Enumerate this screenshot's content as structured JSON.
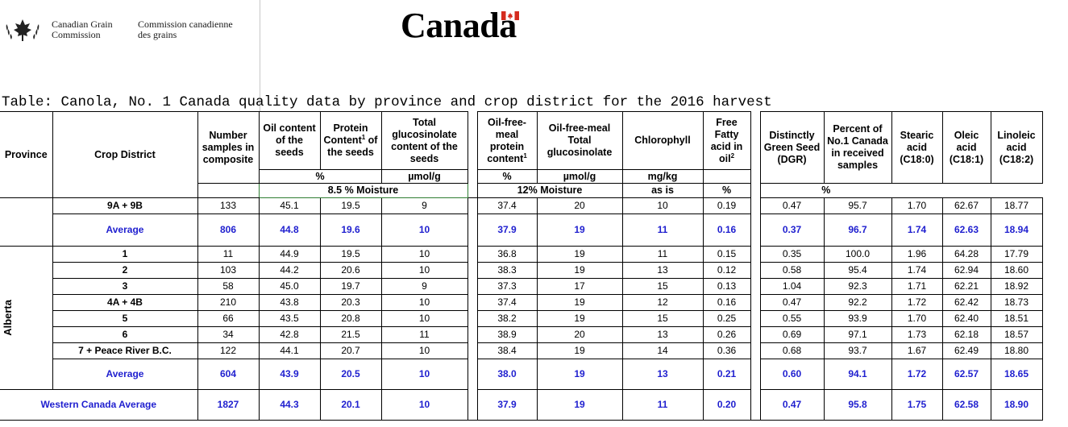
{
  "header": {
    "cgc_en_line1": "Canadian Grain",
    "cgc_en_line2": "Commission",
    "cgc_fr_line1": "Commission canadienne",
    "cgc_fr_line2": "des grains",
    "wordmark": "Canada",
    "title": "Table: Canola, No. 1 Canada quality data by province and crop district for the 2016 harvest"
  },
  "columns": {
    "province": "Province",
    "district": "Crop District",
    "samples": "Number samples in composite",
    "oil_a": "Oil content of the seeds",
    "protein_a": "Protein",
    "protein_b": "Content",
    "protein_sup": "1",
    "protein_c": " of the seeds",
    "gluc": "Total glucosinolate content of the seeds",
    "ofm_protein_a": "Oil-free-meal protein content",
    "ofm_protein_sup": "1",
    "ofm_gluc": "Oil-free-meal Total glucosinolate",
    "chlorophyll": "Chlorophyll",
    "ffa_a": "Free Fatty acid in oil",
    "ffa_sup": "2",
    "dgr": "Distinctly Green Seed (DGR)",
    "pct_no1": "Percent of No.1 Canada in received samples",
    "stearic": "Stearic acid (C18:0)",
    "oleic": "Oleic acid (C18:1)",
    "linoleic": "Linoleic acid (C18:2)"
  },
  "units": {
    "pct": "%",
    "umol": "µmol/g",
    "pct2": "%",
    "umol2": "µmol/g",
    "mgkg": "mg/kg",
    "moist85": "8.5 % Moisture",
    "moist12": "12% Moisture",
    "asis": "as is",
    "pct3": "%",
    "pct4": "%"
  },
  "group1": {
    "rows": [
      {
        "district": "9A + 9B",
        "samples": "133",
        "oil": "45.1",
        "protein": "19.5",
        "gluc": "9",
        "ofm_protein": "37.4",
        "ofm_gluc": "20",
        "chl": "10",
        "ffa": "0.19",
        "dgr": "0.47",
        "pct": "95.7",
        "stearic": "1.70",
        "oleic": "62.67",
        "linoleic": "18.77"
      }
    ],
    "average": {
      "label": "Average",
      "samples": "806",
      "oil": "44.8",
      "protein": "19.6",
      "gluc": "10",
      "ofm_protein": "37.9",
      "ofm_gluc": "19",
      "chl": "11",
      "ffa": "0.16",
      "dgr": "0.37",
      "pct": "96.7",
      "stearic": "1.74",
      "oleic": "62.63",
      "linoleic": "18.94"
    }
  },
  "alberta": {
    "province": "Alberta",
    "rows": [
      {
        "district": "1",
        "samples": "11",
        "oil": "44.9",
        "protein": "19.5",
        "gluc": "10",
        "ofm_protein": "36.8",
        "ofm_gluc": "19",
        "chl": "11",
        "ffa": "0.15",
        "dgr": "0.35",
        "pct": "100.0",
        "stearic": "1.96",
        "oleic": "64.28",
        "linoleic": "17.79"
      },
      {
        "district": "2",
        "samples": "103",
        "oil": "44.2",
        "protein": "20.6",
        "gluc": "10",
        "ofm_protein": "38.3",
        "ofm_gluc": "19",
        "chl": "13",
        "ffa": "0.12",
        "dgr": "0.58",
        "pct": "95.4",
        "stearic": "1.74",
        "oleic": "62.94",
        "linoleic": "18.60"
      },
      {
        "district": "3",
        "samples": "58",
        "oil": "45.0",
        "protein": "19.7",
        "gluc": "9",
        "ofm_protein": "37.3",
        "ofm_gluc": "17",
        "chl": "15",
        "ffa": "0.13",
        "dgr": "1.04",
        "pct": "92.3",
        "stearic": "1.71",
        "oleic": "62.21",
        "linoleic": "18.92"
      },
      {
        "district": "4A + 4B",
        "samples": "210",
        "oil": "43.8",
        "protein": "20.3",
        "gluc": "10",
        "ofm_protein": "37.4",
        "ofm_gluc": "19",
        "chl": "12",
        "ffa": "0.16",
        "dgr": "0.47",
        "pct": "92.2",
        "stearic": "1.72",
        "oleic": "62.42",
        "linoleic": "18.73"
      },
      {
        "district": "5",
        "samples": "66",
        "oil": "43.5",
        "protein": "20.8",
        "gluc": "10",
        "ofm_protein": "38.2",
        "ofm_gluc": "19",
        "chl": "15",
        "ffa": "0.25",
        "dgr": "0.55",
        "pct": "93.9",
        "stearic": "1.70",
        "oleic": "62.40",
        "linoleic": "18.51"
      },
      {
        "district": "6",
        "samples": "34",
        "oil": "42.8",
        "protein": "21.5",
        "gluc": "11",
        "ofm_protein": "38.9",
        "ofm_gluc": "20",
        "chl": "13",
        "ffa": "0.26",
        "dgr": "0.69",
        "pct": "97.1",
        "stearic": "1.73",
        "oleic": "62.18",
        "linoleic": "18.57"
      },
      {
        "district": "7 + Peace River B.C.",
        "samples": "122",
        "oil": "44.1",
        "protein": "20.7",
        "gluc": "10",
        "ofm_protein": "38.4",
        "ofm_gluc": "19",
        "chl": "14",
        "ffa": "0.36",
        "dgr": "0.68",
        "pct": "93.7",
        "stearic": "1.67",
        "oleic": "62.49",
        "linoleic": "18.80"
      }
    ],
    "average": {
      "label": "Average",
      "samples": "604",
      "oil": "43.9",
      "protein": "20.5",
      "gluc": "10",
      "ofm_protein": "38.0",
      "ofm_gluc": "19",
      "chl": "13",
      "ffa": "0.21",
      "dgr": "0.60",
      "pct": "94.1",
      "stearic": "1.72",
      "oleic": "62.57",
      "linoleic": "18.65"
    }
  },
  "western": {
    "label": "Western Canada Average",
    "samples": "1827",
    "oil": "44.3",
    "protein": "20.1",
    "gluc": "10",
    "ofm_protein": "37.9",
    "ofm_gluc": "19",
    "chl": "11",
    "ffa": "0.20",
    "dgr": "0.47",
    "pct": "95.8",
    "stearic": "1.75",
    "oleic": "62.58",
    "linoleic": "18.90"
  },
  "colors": {
    "average_text": "#1f1fcf",
    "moisture_border": "#2e7d32",
    "flag_red": "#d52b1e"
  }
}
